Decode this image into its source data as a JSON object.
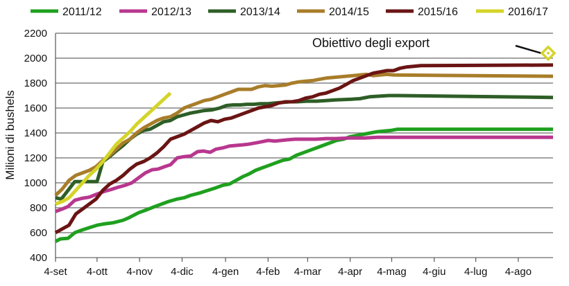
{
  "chart_data": {
    "type": "line",
    "title": "",
    "xlabel": "",
    "ylabel": "Milioni di bushels",
    "ylim": [
      400,
      2200
    ],
    "yticks": [
      400,
      600,
      800,
      1000,
      1200,
      1400,
      1600,
      1800,
      2000,
      2200
    ],
    "xlim_weeks": [
      0,
      51.5
    ],
    "x_tick_labels": [
      {
        "label": "4-set",
        "week": 0
      },
      {
        "label": "4-ott",
        "week": 4.3
      },
      {
        "label": "4-nov",
        "week": 8.7
      },
      {
        "label": "4-dic",
        "week": 13.1
      },
      {
        "label": "4-gen",
        "week": 17.6
      },
      {
        "label": "4-feb",
        "week": 22.0
      },
      {
        "label": "4-mar",
        "week": 26.1
      },
      {
        "label": "4-apr",
        "week": 30.5
      },
      {
        "label": "4-mag",
        "week": 34.8
      },
      {
        "label": "4-giu",
        "week": 39.2
      },
      {
        "label": "4-lug",
        "week": 43.5
      },
      {
        "label": "4-ago",
        "week": 47.9
      }
    ],
    "grid": "horizontal",
    "legend_position": "top",
    "annotation": {
      "text": "Obiettivo degli export",
      "target_week": 51.0,
      "target_value": 2040
    },
    "series": [
      {
        "name": "2011/12",
        "color": "#1fa01f",
        "points": [
          [
            0,
            530
          ],
          [
            0.5,
            550
          ],
          [
            1.3,
            555
          ],
          [
            2,
            600
          ],
          [
            2.7,
            620
          ],
          [
            3.5,
            640
          ],
          [
            4.3,
            660
          ],
          [
            5,
            670
          ],
          [
            6,
            680
          ],
          [
            7,
            700
          ],
          [
            7.6,
            720
          ],
          [
            8.6,
            760
          ],
          [
            9.3,
            780
          ],
          [
            10.3,
            810
          ],
          [
            11,
            830
          ],
          [
            11.7,
            850
          ],
          [
            12.6,
            870
          ],
          [
            13.3,
            880
          ],
          [
            14,
            900
          ],
          [
            15,
            920
          ],
          [
            15.8,
            940
          ],
          [
            16.6,
            960
          ],
          [
            17.3,
            980
          ],
          [
            18,
            990
          ],
          [
            18.7,
            1020
          ],
          [
            19.4,
            1050
          ],
          [
            20,
            1070
          ],
          [
            20.7,
            1100
          ],
          [
            21.4,
            1120
          ],
          [
            22.1,
            1140
          ],
          [
            22.8,
            1160
          ],
          [
            23.5,
            1180
          ],
          [
            24.2,
            1190
          ],
          [
            24.9,
            1220
          ],
          [
            25.6,
            1240
          ],
          [
            26.3,
            1260
          ],
          [
            27,
            1280
          ],
          [
            27.7,
            1300
          ],
          [
            28.4,
            1320
          ],
          [
            29.1,
            1340
          ],
          [
            29.8,
            1350
          ],
          [
            30.5,
            1370
          ],
          [
            31.2,
            1380
          ],
          [
            31.9,
            1390
          ],
          [
            32.6,
            1400
          ],
          [
            33.3,
            1410
          ],
          [
            34,
            1415
          ],
          [
            34.7,
            1420
          ],
          [
            35.4,
            1430
          ],
          [
            51.5,
            1430
          ]
        ]
      },
      {
        "name": "2012/13",
        "color": "#b8378e",
        "points": [
          [
            0,
            770
          ],
          [
            0.7,
            790
          ],
          [
            1.3,
            810
          ],
          [
            2,
            860
          ],
          [
            2.7,
            875
          ],
          [
            3.5,
            885
          ],
          [
            4.3,
            910
          ],
          [
            5,
            930
          ],
          [
            5.7,
            945
          ],
          [
            6.5,
            965
          ],
          [
            7.2,
            980
          ],
          [
            7.9,
            1000
          ],
          [
            8.6,
            1040
          ],
          [
            9.3,
            1080
          ],
          [
            10,
            1105
          ],
          [
            10.6,
            1110
          ],
          [
            11.3,
            1130
          ],
          [
            11.9,
            1145
          ],
          [
            12.6,
            1200
          ],
          [
            13.3,
            1210
          ],
          [
            14,
            1215
          ],
          [
            14.7,
            1250
          ],
          [
            15.3,
            1255
          ],
          [
            16,
            1245
          ],
          [
            16.6,
            1270
          ],
          [
            17.3,
            1280
          ],
          [
            18,
            1295
          ],
          [
            18.7,
            1300
          ],
          [
            19.4,
            1305
          ],
          [
            20,
            1310
          ],
          [
            20.7,
            1320
          ],
          [
            21.4,
            1330
          ],
          [
            22,
            1340
          ],
          [
            22.7,
            1335
          ],
          [
            23.4,
            1340
          ],
          [
            24,
            1345
          ],
          [
            24.8,
            1350
          ],
          [
            26,
            1350
          ],
          [
            27,
            1350
          ],
          [
            28,
            1355
          ],
          [
            29,
            1355
          ],
          [
            30.5,
            1360
          ],
          [
            32,
            1360
          ],
          [
            33.3,
            1365
          ],
          [
            51.5,
            1365
          ]
        ]
      },
      {
        "name": "2013/14",
        "color": "#2e5e27",
        "points": [
          [
            0,
            880
          ],
          [
            0.6,
            870
          ],
          [
            1.3,
            940
          ],
          [
            2,
            1010
          ],
          [
            2.7,
            1010
          ],
          [
            3.5,
            1010
          ],
          [
            4.3,
            1010
          ],
          [
            4.9,
            1170
          ],
          [
            5.6,
            1210
          ],
          [
            6.2,
            1250
          ],
          [
            7,
            1300
          ],
          [
            7.7,
            1350
          ],
          [
            8.4,
            1390
          ],
          [
            9.1,
            1420
          ],
          [
            9.8,
            1430
          ],
          [
            10.5,
            1460
          ],
          [
            11.2,
            1490
          ],
          [
            11.9,
            1500
          ],
          [
            12.6,
            1530
          ],
          [
            13.3,
            1545
          ],
          [
            14,
            1560
          ],
          [
            14.7,
            1570
          ],
          [
            15.4,
            1580
          ],
          [
            16.2,
            1585
          ],
          [
            17,
            1600
          ],
          [
            17.7,
            1620
          ],
          [
            18.4,
            1625
          ],
          [
            19.1,
            1625
          ],
          [
            19.8,
            1630
          ],
          [
            20.5,
            1630
          ],
          [
            21.2,
            1635
          ],
          [
            22,
            1635
          ],
          [
            22.7,
            1640
          ],
          [
            23.5,
            1645
          ],
          [
            24.3,
            1650
          ],
          [
            25,
            1650
          ],
          [
            26,
            1655
          ],
          [
            27,
            1655
          ],
          [
            28,
            1660
          ],
          [
            29,
            1665
          ],
          [
            30.5,
            1670
          ],
          [
            31.5,
            1675
          ],
          [
            32.5,
            1690
          ],
          [
            33.5,
            1695
          ],
          [
            34.5,
            1700
          ],
          [
            35.5,
            1700
          ],
          [
            51.5,
            1685
          ]
        ]
      },
      {
        "name": "2014/15",
        "color": "#a87d2a",
        "points": [
          [
            0,
            900
          ],
          [
            0.7,
            950
          ],
          [
            1.4,
            1020
          ],
          [
            2.1,
            1060
          ],
          [
            2.8,
            1080
          ],
          [
            3.5,
            1100
          ],
          [
            4.2,
            1130
          ],
          [
            4.9,
            1180
          ],
          [
            5.6,
            1220
          ],
          [
            6.3,
            1270
          ],
          [
            7,
            1320
          ],
          [
            7.7,
            1350
          ],
          [
            8.4,
            1400
          ],
          [
            9.1,
            1440
          ],
          [
            9.8,
            1470
          ],
          [
            10.5,
            1500
          ],
          [
            11.2,
            1520
          ],
          [
            11.9,
            1530
          ],
          [
            12.6,
            1560
          ],
          [
            13.3,
            1600
          ],
          [
            14,
            1620
          ],
          [
            14.7,
            1640
          ],
          [
            15.4,
            1660
          ],
          [
            16.1,
            1670
          ],
          [
            16.8,
            1690
          ],
          [
            17.5,
            1710
          ],
          [
            18.2,
            1730
          ],
          [
            18.9,
            1750
          ],
          [
            19.6,
            1750
          ],
          [
            20.3,
            1750
          ],
          [
            21,
            1770
          ],
          [
            21.7,
            1780
          ],
          [
            22.4,
            1775
          ],
          [
            23.1,
            1780
          ],
          [
            23.8,
            1785
          ],
          [
            24.5,
            1800
          ],
          [
            25.2,
            1810
          ],
          [
            25.9,
            1815
          ],
          [
            26.6,
            1820
          ],
          [
            27.3,
            1830
          ],
          [
            28,
            1840
          ],
          [
            28.7,
            1845
          ],
          [
            29.4,
            1850
          ],
          [
            30.1,
            1855
          ],
          [
            30.8,
            1860
          ],
          [
            31.5,
            1865
          ],
          [
            32.2,
            1870
          ],
          [
            32.9,
            1860
          ],
          [
            33.6,
            1865
          ],
          [
            34.3,
            1870
          ],
          [
            35,
            1865
          ],
          [
            51.5,
            1855
          ]
        ]
      },
      {
        "name": "2015/16",
        "color": "#6b1414",
        "points": [
          [
            0,
            600
          ],
          [
            0.7,
            630
          ],
          [
            1.4,
            660
          ],
          [
            2.1,
            750
          ],
          [
            2.8,
            790
          ],
          [
            3.5,
            830
          ],
          [
            4.2,
            870
          ],
          [
            4.9,
            940
          ],
          [
            5.6,
            990
          ],
          [
            6.3,
            1020
          ],
          [
            7,
            1060
          ],
          [
            7.7,
            1110
          ],
          [
            8.4,
            1150
          ],
          [
            9.1,
            1170
          ],
          [
            9.8,
            1200
          ],
          [
            10.5,
            1240
          ],
          [
            11.2,
            1290
          ],
          [
            11.9,
            1350
          ],
          [
            12.6,
            1370
          ],
          [
            13.3,
            1390
          ],
          [
            14,
            1420
          ],
          [
            14.7,
            1450
          ],
          [
            15.4,
            1480
          ],
          [
            16.1,
            1500
          ],
          [
            16.8,
            1490
          ],
          [
            17.5,
            1510
          ],
          [
            18.2,
            1520
          ],
          [
            18.9,
            1540
          ],
          [
            19.6,
            1560
          ],
          [
            20.3,
            1580
          ],
          [
            21,
            1600
          ],
          [
            21.7,
            1610
          ],
          [
            22.4,
            1620
          ],
          [
            23.1,
            1640
          ],
          [
            23.8,
            1650
          ],
          [
            24.5,
            1650
          ],
          [
            25.2,
            1660
          ],
          [
            25.9,
            1680
          ],
          [
            26.6,
            1690
          ],
          [
            27.3,
            1710
          ],
          [
            28,
            1720
          ],
          [
            28.7,
            1740
          ],
          [
            29.4,
            1760
          ],
          [
            30.1,
            1790
          ],
          [
            30.8,
            1820
          ],
          [
            31.5,
            1840
          ],
          [
            32.2,
            1860
          ],
          [
            32.9,
            1880
          ],
          [
            33.6,
            1890
          ],
          [
            34.3,
            1900
          ],
          [
            35,
            1900
          ],
          [
            35.7,
            1920
          ],
          [
            36.4,
            1930
          ],
          [
            37.1,
            1935
          ],
          [
            37.8,
            1940
          ],
          [
            51.5,
            1945
          ]
        ]
      },
      {
        "name": "2016/17",
        "color": "#d4d42a",
        "points": [
          [
            0,
            830
          ],
          [
            0.7,
            850
          ],
          [
            1.4,
            880
          ],
          [
            2.1,
            940
          ],
          [
            2.8,
            1000
          ],
          [
            3.5,
            1060
          ],
          [
            4.2,
            1110
          ],
          [
            4.9,
            1170
          ],
          [
            5.6,
            1240
          ],
          [
            6.3,
            1310
          ],
          [
            7,
            1360
          ],
          [
            7.7,
            1410
          ],
          [
            8.4,
            1470
          ],
          [
            9.1,
            1520
          ],
          [
            9.8,
            1570
          ],
          [
            10.5,
            1620
          ],
          [
            11.2,
            1670
          ],
          [
            11.9,
            1720
          ]
        ]
      }
    ]
  }
}
